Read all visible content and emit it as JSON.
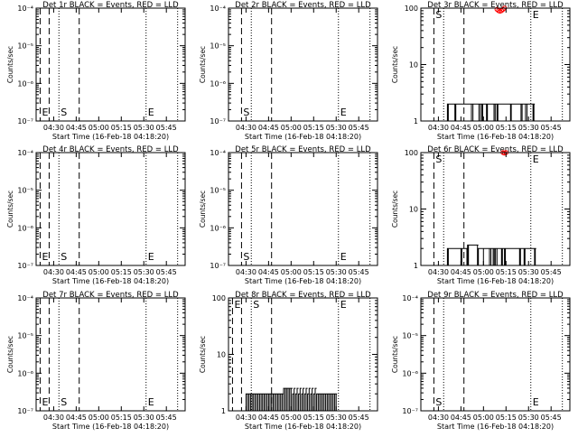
{
  "figure": {
    "background": "#ffffff",
    "foreground": "#000000",
    "lld_color": "#ff0000"
  },
  "chart_data": [
    {
      "type": "line",
      "title": "Det 1r BLACK = Events, RED = LLD",
      "xlabel": "Start Time (16-Feb-18 04:18:20)",
      "ylabel": "Counts/sec",
      "y_scale": "log",
      "ylim": [
        1e-07,
        0.0001
      ],
      "y_ticks": [
        "10⁻⁷",
        "10⁻⁶",
        "10⁻⁵",
        "10⁻⁴"
      ],
      "x_ticks": [
        "04:30",
        "04:45",
        "05:00",
        "05:15",
        "05:30",
        "05:45"
      ],
      "x_tick_minutes": [
        30,
        45,
        60,
        75,
        90,
        105
      ],
      "xlim_minutes": [
        18.33,
        117.5
      ],
      "marker_lines": [
        {
          "minute": 21.0,
          "style": "dashed",
          "label": "E"
        },
        {
          "minute": 27.0,
          "style": "dashed",
          "label": ""
        },
        {
          "minute": 33.5,
          "style": "dotted",
          "label": "S"
        },
        {
          "minute": 47.0,
          "style": "dashed",
          "label": ""
        },
        {
          "minute": 91.5,
          "style": "dotted",
          "label": "E"
        },
        {
          "minute": 112.5,
          "style": "dotted",
          "label": ""
        }
      ],
      "series": [],
      "grid": false
    },
    {
      "type": "line",
      "title": "Det 2r BLACK = Events, RED = LLD",
      "xlabel": "Start Time (16-Feb-18 04:18:20)",
      "ylabel": "Counts/sec",
      "y_scale": "log",
      "ylim": [
        1e-07,
        0.0001
      ],
      "y_ticks": [
        "10⁻⁷",
        "10⁻⁶",
        "10⁻⁵",
        "10⁻⁴"
      ],
      "x_ticks": [
        "04:30",
        "04:45",
        "05:00",
        "05:15",
        "05:30",
        "05:45"
      ],
      "x_tick_minutes": [
        30,
        45,
        60,
        75,
        90,
        105
      ],
      "xlim_minutes": [
        18.33,
        117.5
      ],
      "marker_lines": [
        {
          "minute": 27.0,
          "style": "dashed",
          "label": "S"
        },
        {
          "minute": 33.5,
          "style": "dotted",
          "label": ""
        },
        {
          "minute": 47.0,
          "style": "dashed",
          "label": ""
        },
        {
          "minute": 91.5,
          "style": "dotted",
          "label": "E"
        },
        {
          "minute": 112.5,
          "style": "dotted",
          "label": ""
        }
      ],
      "series": [],
      "grid": false
    },
    {
      "type": "line",
      "title": "Det 3r BLACK = Events, RED = LLD",
      "xlabel": "Start Time (16-Feb-18 04:18:20)",
      "ylabel": "Counts/sec",
      "y_scale": "log",
      "ylim": [
        1,
        100
      ],
      "y_ticks": [
        "1",
        "10",
        "100"
      ],
      "x_ticks": [
        "04:30",
        "04:45",
        "05:00",
        "05:15",
        "05:30",
        "05:45"
      ],
      "x_tick_minutes": [
        30,
        45,
        60,
        75,
        90,
        105
      ],
      "xlim_minutes": [
        18.33,
        117.5
      ],
      "marker_lines": [
        {
          "minute": 27.0,
          "style": "dashed",
          "label": "S"
        },
        {
          "minute": 33.5,
          "style": "dotted",
          "label": ""
        },
        {
          "minute": 47.0,
          "style": "dashed",
          "label": ""
        },
        {
          "minute": 91.5,
          "style": "dotted",
          "label": "E"
        },
        {
          "minute": 112.5,
          "style": "dotted",
          "label": ""
        }
      ],
      "series": [
        {
          "color": "#000000",
          "x": [
            36,
            36.6,
            41,
            41.6,
            52,
            53,
            57,
            58,
            59,
            59.5,
            62,
            62.6,
            67,
            67.8,
            69,
            69.6,
            78,
            78.5,
            85,
            85.7,
            88,
            89,
            93,
            93.6
          ],
          "y": [
            2,
            2,
            2,
            2,
            2,
            2,
            2,
            2,
            2,
            2,
            2,
            2,
            2,
            2,
            2,
            2,
            2,
            2,
            2,
            2,
            2,
            2,
            2,
            2
          ]
        },
        {
          "color": "#ff0000",
          "x": [
            69,
            70,
            71,
            72,
            73,
            74
          ],
          "y": [
            95,
            90,
            88,
            90,
            95,
            100
          ]
        }
      ],
      "grid": false
    },
    {
      "type": "line",
      "title": "Det 4r BLACK = Events, RED = LLD",
      "xlabel": "Start Time (16-Feb-18 04:18:20)",
      "ylabel": "Counts/sec",
      "y_scale": "log",
      "ylim": [
        1e-07,
        0.0001
      ],
      "y_ticks": [
        "10⁻⁷",
        "10⁻⁶",
        "10⁻⁵",
        "10⁻⁴"
      ],
      "x_ticks": [
        "04:30",
        "04:45",
        "05:00",
        "05:15",
        "05:30",
        "05:45"
      ],
      "x_tick_minutes": [
        30,
        45,
        60,
        75,
        90,
        105
      ],
      "xlim_minutes": [
        18.33,
        117.5
      ],
      "marker_lines": [
        {
          "minute": 21.0,
          "style": "dashed",
          "label": "E"
        },
        {
          "minute": 27.0,
          "style": "dashed",
          "label": ""
        },
        {
          "minute": 33.5,
          "style": "dotted",
          "label": "S"
        },
        {
          "minute": 47.0,
          "style": "dashed",
          "label": ""
        },
        {
          "minute": 91.5,
          "style": "dotted",
          "label": "E"
        },
        {
          "minute": 112.5,
          "style": "dotted",
          "label": ""
        }
      ],
      "series": [],
      "grid": false
    },
    {
      "type": "line",
      "title": "Det 5r BLACK = Events, RED = LLD",
      "xlabel": "Start Time (16-Feb-18 04:18:20)",
      "ylabel": "Counts/sec",
      "y_scale": "log",
      "ylim": [
        1e-07,
        0.0001
      ],
      "y_ticks": [
        "10⁻⁷",
        "10⁻⁶",
        "10⁻⁵",
        "10⁻⁴"
      ],
      "x_ticks": [
        "04:30",
        "04:45",
        "05:00",
        "05:15",
        "05:30",
        "05:45"
      ],
      "x_tick_minutes": [
        30,
        45,
        60,
        75,
        90,
        105
      ],
      "xlim_minutes": [
        18.33,
        117.5
      ],
      "marker_lines": [
        {
          "minute": 27.0,
          "style": "dashed",
          "label": "S"
        },
        {
          "minute": 33.5,
          "style": "dotted",
          "label": ""
        },
        {
          "minute": 47.0,
          "style": "dashed",
          "label": ""
        },
        {
          "minute": 91.5,
          "style": "dotted",
          "label": "E"
        },
        {
          "minute": 112.5,
          "style": "dotted",
          "label": ""
        }
      ],
      "series": [],
      "grid": false
    },
    {
      "type": "line",
      "title": "Det 6r BLACK = Events, RED = LLD",
      "xlabel": "Start Time (16-Feb-18 04:18:20)",
      "ylabel": "Counts/sec",
      "y_scale": "log",
      "ylim": [
        1,
        100
      ],
      "y_ticks": [
        "1",
        "10",
        "100"
      ],
      "x_ticks": [
        "04:30",
        "04:45",
        "05:00",
        "05:15",
        "05:30",
        "05:45"
      ],
      "x_tick_minutes": [
        30,
        45,
        60,
        75,
        90,
        105
      ],
      "xlim_minutes": [
        18.33,
        117.5
      ],
      "marker_lines": [
        {
          "minute": 27.0,
          "style": "dashed",
          "label": "S"
        },
        {
          "minute": 33.5,
          "style": "dotted",
          "label": ""
        },
        {
          "minute": 47.0,
          "style": "dashed",
          "label": ""
        },
        {
          "minute": 91.5,
          "style": "dotted",
          "label": "E"
        },
        {
          "minute": 112.5,
          "style": "dotted",
          "label": ""
        }
      ],
      "series": [
        {
          "color": "#000000",
          "x": [
            36,
            36.6,
            45,
            45.6,
            49,
            49.4,
            50,
            56,
            56.6,
            60,
            64,
            65,
            66.5,
            67.2,
            68,
            69,
            72,
            72.6,
            74,
            74.6,
            84,
            84.6,
            87,
            87.6,
            94,
            94.5
          ],
          "y": [
            2,
            2,
            2,
            2,
            2,
            2.3,
            2.3,
            2.3,
            2,
            2,
            2,
            2,
            2,
            2,
            2,
            2,
            2,
            2,
            2,
            2,
            2,
            2,
            2,
            2,
            2,
            2
          ]
        },
        {
          "color": "#ff0000",
          "x": [
            73,
            74,
            75
          ],
          "y": [
            100,
            98,
            100
          ]
        }
      ],
      "grid": false
    },
    {
      "type": "line",
      "title": "Det 7r BLACK = Events, RED = LLD",
      "xlabel": "Start Time (16-Feb-18 04:18:20)",
      "ylabel": "Counts/sec",
      "y_scale": "log",
      "ylim": [
        1e-07,
        0.0001
      ],
      "y_ticks": [
        "10⁻⁷",
        "10⁻⁶",
        "10⁻⁵",
        "10⁻⁴"
      ],
      "x_ticks": [
        "04:30",
        "04:45",
        "05:00",
        "05:15",
        "05:30",
        "05:45"
      ],
      "x_tick_minutes": [
        30,
        45,
        60,
        75,
        90,
        105
      ],
      "xlim_minutes": [
        18.33,
        117.5
      ],
      "marker_lines": [
        {
          "minute": 21.0,
          "style": "dashed",
          "label": "E"
        },
        {
          "minute": 27.0,
          "style": "dashed",
          "label": ""
        },
        {
          "minute": 33.5,
          "style": "dotted",
          "label": "S"
        },
        {
          "minute": 47.0,
          "style": "dashed",
          "label": ""
        },
        {
          "minute": 91.5,
          "style": "dotted",
          "label": "E"
        },
        {
          "minute": 112.5,
          "style": "dotted",
          "label": ""
        }
      ],
      "series": [],
      "grid": false
    },
    {
      "type": "line",
      "title": "Det 8r BLACK = Events, RED = LLD",
      "xlabel": "Start Time (16-Feb-18 04:18:20)",
      "ylabel": "Counts/sec",
      "y_scale": "log",
      "ylim": [
        1,
        100
      ],
      "y_ticks": [
        "1",
        "10",
        "100"
      ],
      "x_ticks": [
        "04:30",
        "04:45",
        "05:00",
        "05:15",
        "05:30",
        "05:45"
      ],
      "x_tick_minutes": [
        30,
        45,
        60,
        75,
        90,
        105
      ],
      "xlim_minutes": [
        18.33,
        117.5
      ],
      "marker_lines": [
        {
          "minute": 21.0,
          "style": "dashed",
          "label": "E"
        },
        {
          "minute": 27.0,
          "style": "dashed",
          "label": ""
        },
        {
          "minute": 33.5,
          "style": "dotted",
          "label": "S"
        },
        {
          "minute": 47.0,
          "style": "dashed",
          "label": ""
        },
        {
          "minute": 91.5,
          "style": "dotted",
          "label": "E"
        },
        {
          "minute": 112.5,
          "style": "dotted",
          "label": ""
        }
      ],
      "series": [
        {
          "color": "#000000",
          "x": [
            30,
            31,
            32,
            33,
            34,
            35,
            36,
            37,
            38,
            39,
            40,
            41,
            42,
            43,
            44,
            45,
            46,
            47,
            48,
            49,
            50,
            51,
            52,
            53,
            54,
            55,
            56,
            57,
            58,
            59,
            60,
            61,
            62,
            63,
            64,
            65,
            66,
            67,
            68,
            69,
            70,
            71,
            72,
            73,
            74,
            75,
            76,
            77,
            78,
            79,
            80,
            81,
            82,
            83,
            84,
            85,
            86,
            87,
            88,
            89,
            90
          ],
          "y": [
            2,
            2,
            2,
            2,
            2,
            2,
            2,
            2,
            2,
            2,
            2,
            2,
            2,
            2,
            2,
            2,
            2,
            2,
            2,
            2,
            2,
            2,
            2,
            2,
            2,
            2.5,
            2.5,
            2.5,
            2.5,
            2.5,
            2.5,
            2,
            2.5,
            2,
            2.5,
            2,
            2.5,
            2,
            2.5,
            2,
            2.5,
            2,
            2.5,
            2,
            2.5,
            2,
            2.5,
            2,
            2,
            2,
            2,
            2,
            2,
            2,
            2,
            2,
            2,
            2,
            2,
            2,
            2
          ]
        }
      ],
      "grid": false
    },
    {
      "type": "line",
      "title": "Det 9r BLACK = Events, RED = LLD",
      "xlabel": "Start Time (16-Feb-18 04:18:20)",
      "ylabel": "Counts/sec",
      "y_scale": "log",
      "ylim": [
        1e-07,
        0.0001
      ],
      "y_ticks": [
        "10⁻⁷",
        "10⁻⁶",
        "10⁻⁵",
        "10⁻⁴"
      ],
      "x_ticks": [
        "04:30",
        "04:45",
        "05:00",
        "05:15",
        "05:30",
        "05:45"
      ],
      "x_tick_minutes": [
        30,
        45,
        60,
        75,
        90,
        105
      ],
      "xlim_minutes": [
        18.33,
        117.5
      ],
      "marker_lines": [
        {
          "minute": 27.0,
          "style": "dashed",
          "label": "S"
        },
        {
          "minute": 33.5,
          "style": "dotted",
          "label": ""
        },
        {
          "minute": 47.0,
          "style": "dashed",
          "label": ""
        },
        {
          "minute": 91.5,
          "style": "dotted",
          "label": "E"
        },
        {
          "minute": 112.5,
          "style": "dotted",
          "label": ""
        }
      ],
      "series": [],
      "grid": false
    }
  ]
}
